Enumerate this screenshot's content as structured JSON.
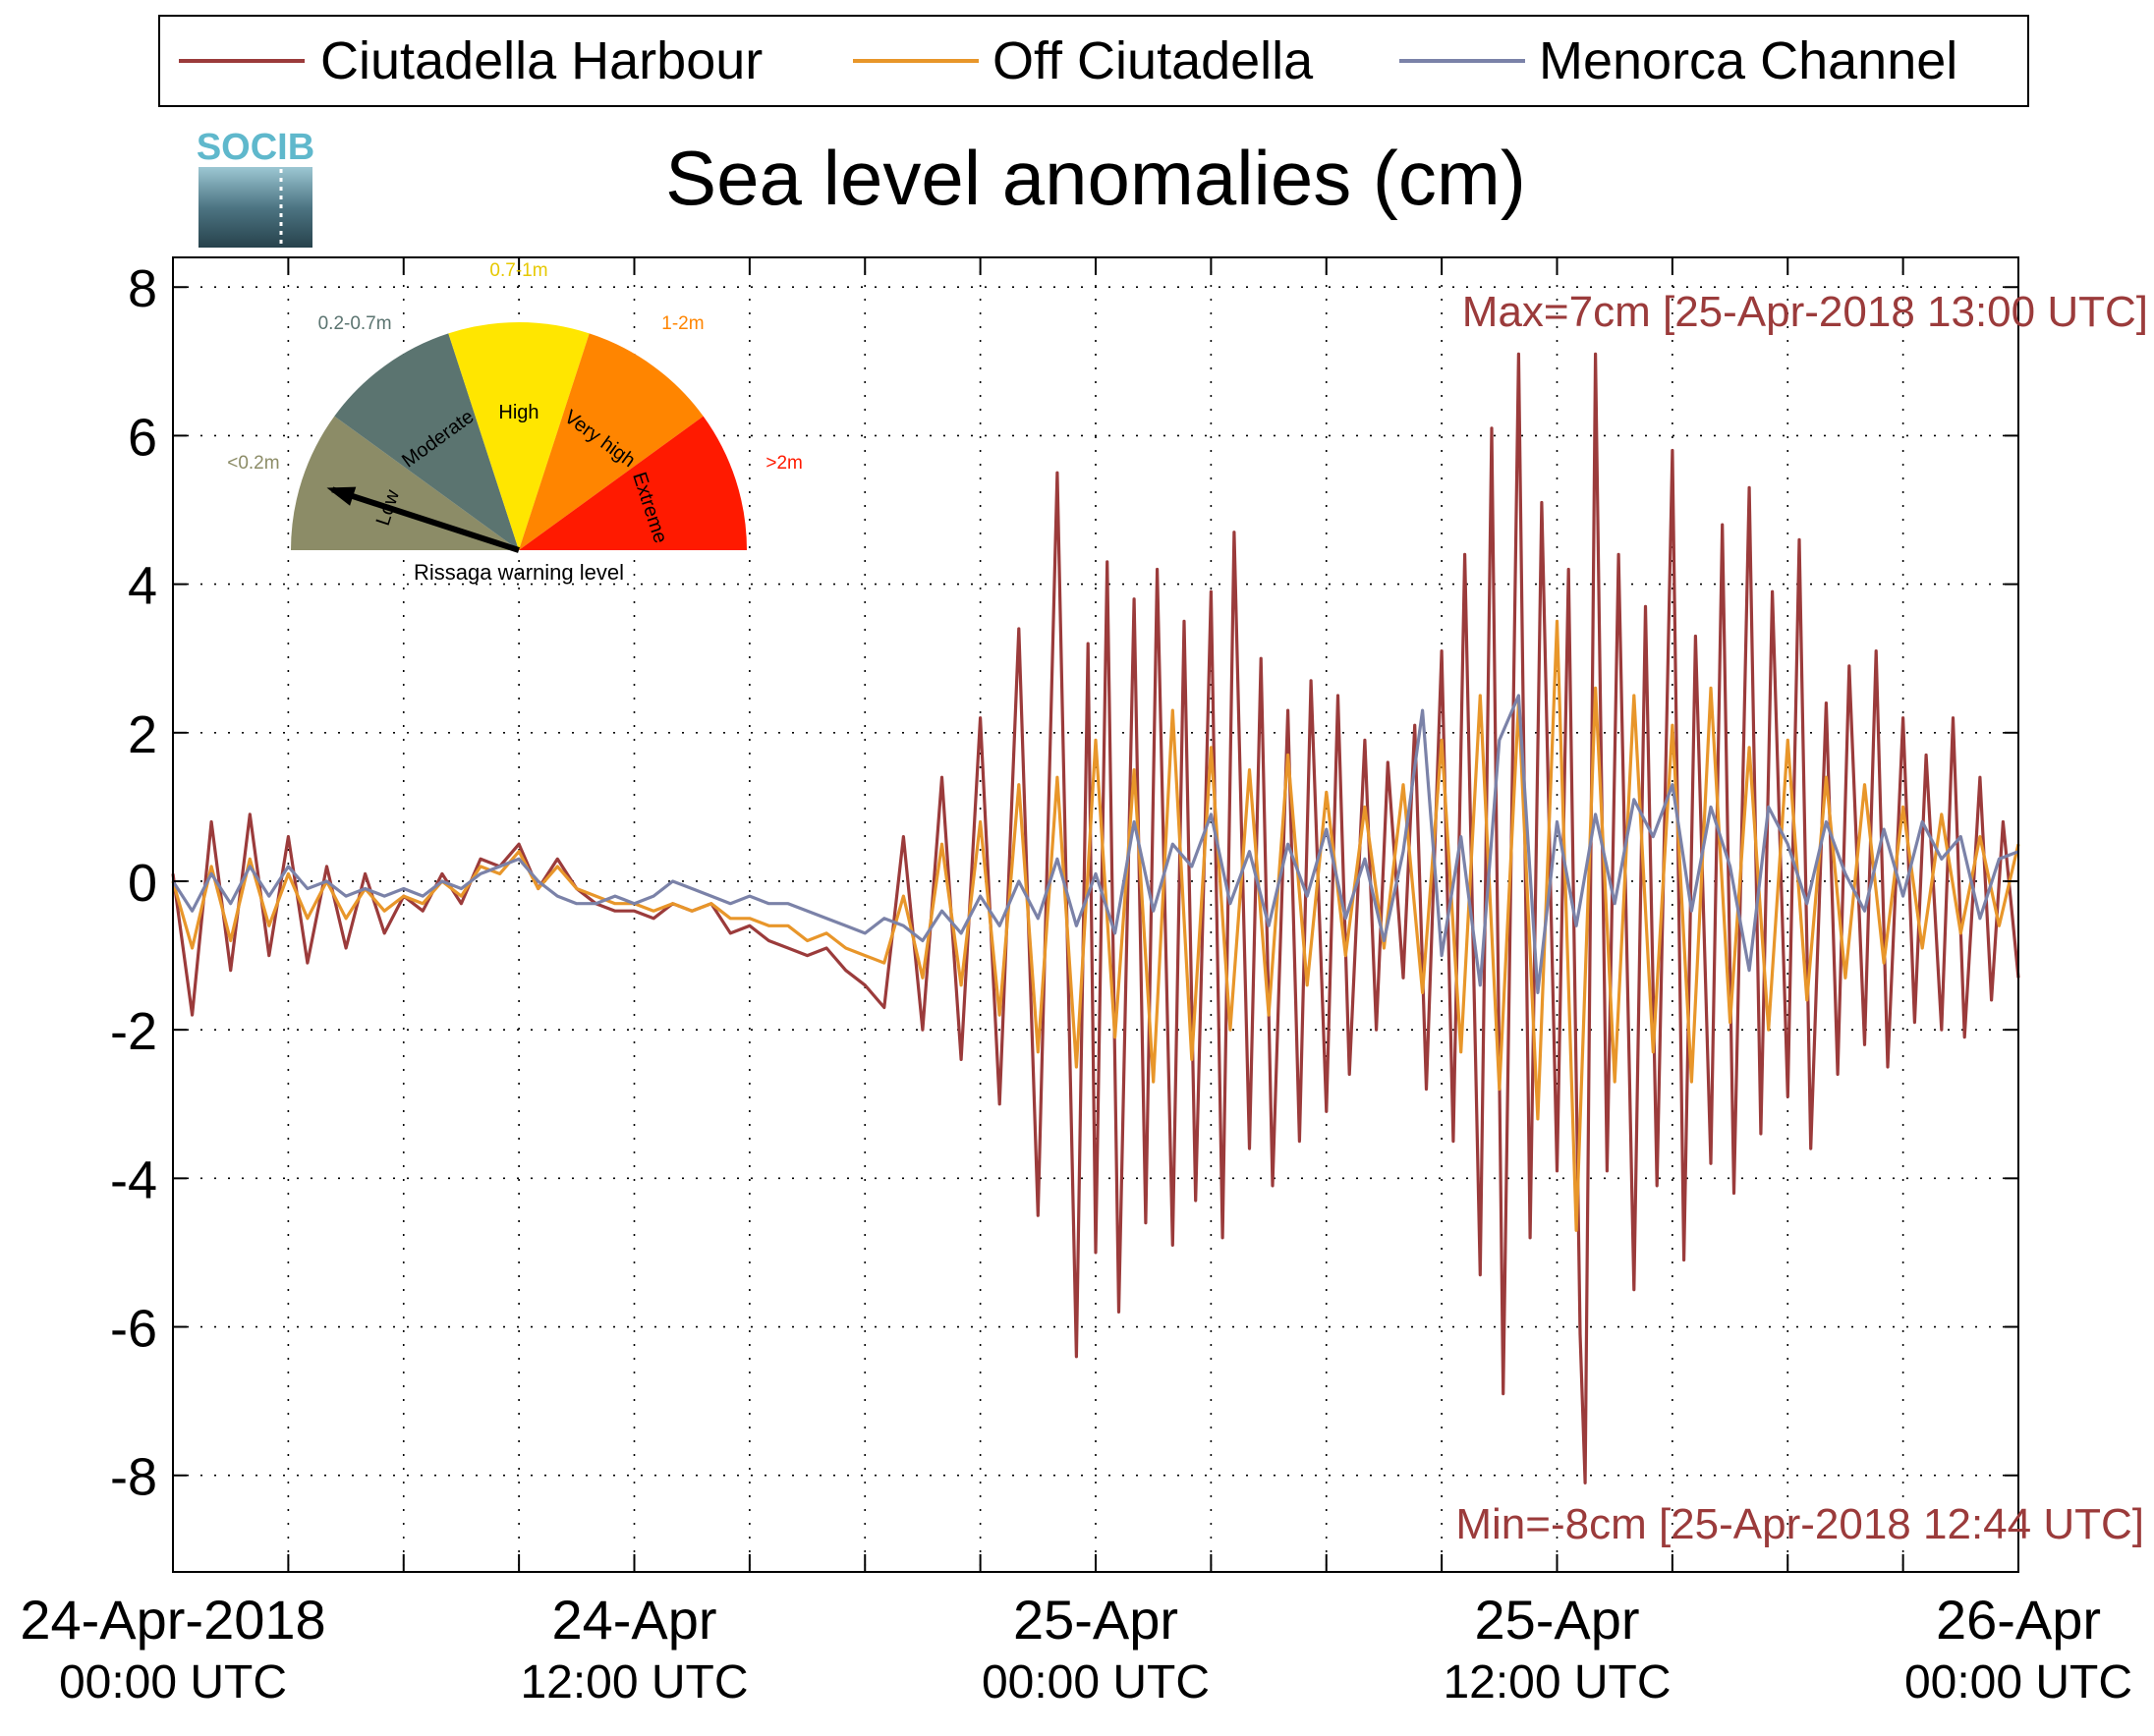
{
  "chart_data": {
    "type": "line",
    "title": "Sea level anomalies (cm)",
    "xlabel": "",
    "ylabel": "",
    "ylim": [
      -9.3,
      8.4
    ],
    "xlim_hours": [
      0,
      48
    ],
    "grid": true,
    "legend_position": "top",
    "colors": {
      "Ciutadella Harbour": "#9b3b3b",
      "Off Ciutadella": "#e8962a",
      "Menorca Channel": "#7b82a8"
    },
    "y_ticks": [
      {
        "value": 8,
        "label": "8"
      },
      {
        "value": 6,
        "label": "6"
      },
      {
        "value": 4,
        "label": "4"
      },
      {
        "value": 2,
        "label": "2"
      },
      {
        "value": 0,
        "label": "0"
      },
      {
        "value": -2,
        "label": "-2"
      },
      {
        "value": -4,
        "label": "-4"
      },
      {
        "value": -6,
        "label": "-6"
      },
      {
        "value": -8,
        "label": "-8"
      }
    ],
    "x_ticks": [
      {
        "hour": 0,
        "date": "24-Apr-2018",
        "time": "00:00 UTC"
      },
      {
        "hour": 12,
        "date": "24-Apr",
        "time": "12:00 UTC"
      },
      {
        "hour": 24,
        "date": "25-Apr",
        "time": "00:00 UTC"
      },
      {
        "hour": 36,
        "date": "25-Apr",
        "time": "12:00 UTC"
      },
      {
        "hour": 48,
        "date": "26-Apr",
        "time": "00:00 UTC"
      }
    ],
    "x_minor_hours": [
      3,
      6,
      9,
      15,
      18,
      21,
      27,
      30,
      33,
      39,
      42,
      45
    ],
    "annotations": {
      "max": "Max=7cm [25-Apr-2018 13:00 UTC]",
      "min": "Min=-8cm [25-Apr-2018 12:44 UTC]",
      "color": "#9b3b3b"
    },
    "series": [
      {
        "name": "Ciutadella Harbour",
        "x_hours": [
          0,
          0.5,
          1,
          1.5,
          2,
          2.5,
          3,
          3.5,
          4,
          4.5,
          5,
          5.5,
          6,
          6.5,
          7,
          7.5,
          8,
          8.5,
          9,
          9.5,
          10,
          10.5,
          11,
          11.5,
          12,
          12.5,
          13,
          13.5,
          14,
          14.5,
          15,
          15.5,
          16,
          16.5,
          17,
          17.5,
          18,
          18.5,
          19,
          19.5,
          20,
          20.5,
          21,
          21.5,
          22,
          22.5,
          23,
          23.5,
          23.8,
          24,
          24.3,
          24.6,
          25,
          25.3,
          25.6,
          26,
          26.3,
          26.6,
          27,
          27.3,
          27.6,
          28,
          28.3,
          28.6,
          29,
          29.3,
          29.6,
          30,
          30.3,
          30.6,
          31,
          31.3,
          31.6,
          32,
          32.3,
          32.6,
          33,
          33.3,
          33.6,
          34,
          34.3,
          34.6,
          35,
          35.3,
          35.6,
          36,
          36.3,
          36.6,
          36.73,
          37,
          37.3,
          37.6,
          38,
          38.3,
          38.6,
          39,
          39.3,
          39.6,
          40,
          40.3,
          40.6,
          41,
          41.3,
          41.6,
          42,
          42.3,
          42.6,
          43,
          43.3,
          43.6,
          44,
          44.3,
          44.6,
          45,
          45.3,
          45.6,
          46,
          46.3,
          46.6,
          47,
          47.3,
          47.6,
          48
        ],
        "values": [
          0.1,
          -1.8,
          0.8,
          -1.2,
          0.9,
          -1.0,
          0.6,
          -1.1,
          0.2,
          -0.9,
          0.1,
          -0.7,
          -0.2,
          -0.4,
          0.1,
          -0.3,
          0.3,
          0.2,
          0.5,
          -0.1,
          0.3,
          -0.1,
          -0.3,
          -0.4,
          -0.4,
          -0.5,
          -0.3,
          -0.4,
          -0.3,
          -0.7,
          -0.6,
          -0.8,
          -0.9,
          -1.0,
          -0.9,
          -1.2,
          -1.4,
          -1.7,
          0.6,
          -2.0,
          1.4,
          -2.4,
          2.2,
          -3.0,
          3.4,
          -4.5,
          5.5,
          -6.4,
          3.2,
          -5.0,
          4.3,
          -5.8,
          3.8,
          -4.6,
          4.2,
          -4.9,
          3.5,
          -4.3,
          3.9,
          -4.8,
          4.7,
          -3.6,
          3.0,
          -4.1,
          2.3,
          -3.5,
          2.7,
          -3.1,
          2.5,
          -2.6,
          1.9,
          -2.0,
          1.6,
          -1.3,
          2.1,
          -2.8,
          3.1,
          -3.5,
          4.4,
          -5.3,
          6.1,
          -6.9,
          7.1,
          -4.8,
          5.1,
          -3.9,
          4.2,
          -6.1,
          -8.1,
          7.1,
          -3.9,
          4.4,
          -5.5,
          3.7,
          -4.1,
          5.8,
          -5.1,
          3.3,
          -3.8,
          4.8,
          -4.2,
          5.3,
          -3.4,
          3.9,
          -2.9,
          4.6,
          -3.6,
          2.4,
          -2.6,
          2.9,
          -2.2,
          3.1,
          -2.5,
          2.2,
          -1.9,
          1.7,
          -2.0,
          2.2,
          -2.1,
          1.4,
          -1.6,
          0.8,
          -1.3
        ]
      },
      {
        "name": "Off Ciutadella",
        "x_hours": [
          0,
          0.5,
          1,
          1.5,
          2,
          2.5,
          3,
          3.5,
          4,
          4.5,
          5,
          5.5,
          6,
          6.5,
          7,
          7.5,
          8,
          8.5,
          9,
          9.5,
          10,
          10.5,
          11,
          11.5,
          12,
          12.5,
          13,
          13.5,
          14,
          14.5,
          15,
          15.5,
          16,
          16.5,
          17,
          17.5,
          18,
          18.5,
          19,
          19.5,
          20,
          20.5,
          21,
          21.5,
          22,
          22.5,
          23,
          23.5,
          24,
          24.5,
          25,
          25.5,
          26,
          26.5,
          27,
          27.5,
          28,
          28.5,
          29,
          29.5,
          30,
          30.5,
          31,
          31.5,
          32,
          32.5,
          33,
          33.5,
          34,
          34.5,
          35,
          35.5,
          36,
          36.5,
          37,
          37.5,
          38,
          38.5,
          39,
          39.5,
          40,
          40.5,
          41,
          41.5,
          42,
          42.5,
          43,
          43.5,
          44,
          44.5,
          45,
          45.5,
          46,
          46.5,
          47,
          47.5,
          48
        ],
        "values": [
          0.0,
          -0.9,
          0.2,
          -0.8,
          0.3,
          -0.6,
          0.1,
          -0.5,
          0.0,
          -0.5,
          -0.1,
          -0.4,
          -0.2,
          -0.3,
          0.0,
          -0.2,
          0.2,
          0.1,
          0.4,
          -0.1,
          0.2,
          -0.1,
          -0.2,
          -0.3,
          -0.3,
          -0.4,
          -0.3,
          -0.4,
          -0.3,
          -0.5,
          -0.5,
          -0.6,
          -0.6,
          -0.8,
          -0.7,
          -0.9,
          -1.0,
          -1.1,
          -0.2,
          -1.3,
          0.5,
          -1.4,
          0.8,
          -1.8,
          1.3,
          -2.3,
          1.4,
          -2.5,
          1.9,
          -2.1,
          1.5,
          -2.7,
          2.3,
          -2.4,
          1.8,
          -2.0,
          1.5,
          -1.8,
          1.7,
          -1.4,
          1.2,
          -1.0,
          1.0,
          -0.9,
          1.3,
          -1.5,
          1.9,
          -2.3,
          2.5,
          -2.8,
          2.4,
          -3.2,
          3.5,
          -4.7,
          2.6,
          -2.7,
          2.5,
          -2.3,
          2.1,
          -2.7,
          2.6,
          -1.9,
          1.8,
          -2.0,
          1.9,
          -1.6,
          1.4,
          -1.3,
          1.3,
          -1.1,
          1.0,
          -0.9,
          0.9,
          -0.7,
          0.6,
          -0.6,
          0.5
        ]
      },
      {
        "name": "Menorca Channel",
        "x_hours": [
          0,
          0.5,
          1,
          1.5,
          2,
          2.5,
          3,
          3.5,
          4,
          4.5,
          5,
          5.5,
          6,
          6.5,
          7,
          7.5,
          8,
          8.5,
          9,
          9.5,
          10,
          10.5,
          11,
          11.5,
          12,
          12.5,
          13,
          13.5,
          14,
          14.5,
          15,
          15.5,
          16,
          16.5,
          17,
          17.5,
          18,
          18.5,
          19,
          19.5,
          20,
          20.5,
          21,
          21.5,
          22,
          22.5,
          23,
          23.5,
          24,
          24.5,
          25,
          25.5,
          26,
          26.5,
          27,
          27.5,
          28,
          28.5,
          29,
          29.5,
          30,
          30.5,
          31,
          31.5,
          32,
          32.5,
          33,
          33.5,
          34,
          34.5,
          35,
          35.5,
          36,
          36.5,
          37,
          37.5,
          38,
          38.5,
          39,
          39.5,
          40,
          40.5,
          41,
          41.5,
          42,
          42.5,
          43,
          43.5,
          44,
          44.5,
          45,
          45.5,
          46,
          46.5,
          47,
          47.5,
          48
        ],
        "values": [
          0.0,
          -0.4,
          0.1,
          -0.3,
          0.2,
          -0.2,
          0.2,
          -0.1,
          0.0,
          -0.2,
          -0.1,
          -0.2,
          -0.1,
          -0.2,
          0.0,
          -0.1,
          0.1,
          0.2,
          0.3,
          0.0,
          -0.2,
          -0.3,
          -0.3,
          -0.2,
          -0.3,
          -0.2,
          0.0,
          -0.1,
          -0.2,
          -0.3,
          -0.2,
          -0.3,
          -0.3,
          -0.4,
          -0.5,
          -0.6,
          -0.7,
          -0.5,
          -0.6,
          -0.8,
          -0.4,
          -0.7,
          -0.2,
          -0.6,
          0.0,
          -0.5,
          0.3,
          -0.6,
          0.1,
          -0.7,
          0.8,
          -0.4,
          0.5,
          0.2,
          0.9,
          -0.3,
          0.4,
          -0.6,
          0.5,
          -0.2,
          0.7,
          -0.5,
          0.3,
          -0.8,
          0.4,
          2.3,
          -1.0,
          0.6,
          -1.4,
          1.9,
          2.5,
          -1.5,
          0.8,
          -0.6,
          0.9,
          -0.3,
          1.1,
          0.6,
          1.3,
          -0.4,
          1.0,
          0.2,
          -1.2,
          1.0,
          0.5,
          -0.3,
          0.8,
          0.1,
          -0.4,
          0.7,
          -0.2,
          0.8,
          0.3,
          0.6,
          -0.5,
          0.3,
          0.4
        ]
      }
    ]
  },
  "logo": {
    "text": "SOCIB"
  },
  "gauge": {
    "caption": "Rissaga warning level",
    "needle_level_index": 0,
    "segments": [
      {
        "level": "Low",
        "range": "<0.2m",
        "color": "#8c8c67"
      },
      {
        "level": "Moderate",
        "range": "0.2-0.7m",
        "color": "#5b7470"
      },
      {
        "level": "High",
        "range": "0.7-1m",
        "color": "#ffe600"
      },
      {
        "level": "Very high",
        "range": "1-2m",
        "color": "#ff8500"
      },
      {
        "level": "Extreme",
        "range": ">2m",
        "color": "#ff1a00"
      }
    ]
  }
}
